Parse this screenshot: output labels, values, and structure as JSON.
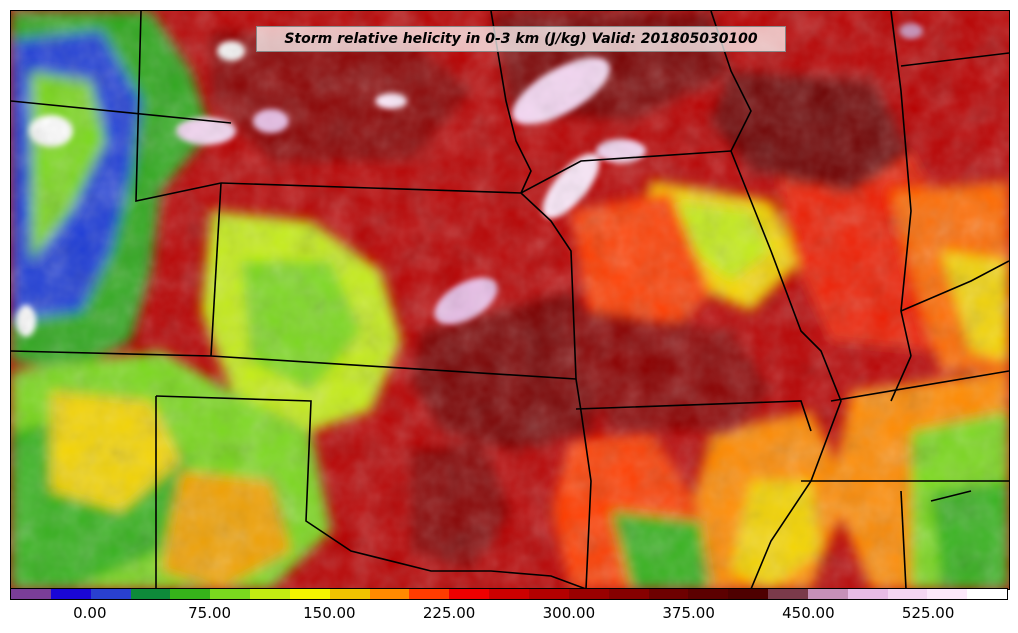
{
  "title": "Storm relative helicity in 0-3 km (J/kg) Valid: 201805030100",
  "colorbar": {
    "colors": [
      "#7a3e98",
      "#1a06d6",
      "#2940d0",
      "#0e8a3a",
      "#36b21a",
      "#7ad81e",
      "#c4ec12",
      "#f4f400",
      "#f0c400",
      "#ff8a00",
      "#ff3c00",
      "#ee0000",
      "#cc0000",
      "#b30000",
      "#9a0000",
      "#860000",
      "#6e0000",
      "#5c0000",
      "#4e0000",
      "#7a3a4a",
      "#c690b8",
      "#e8bce6",
      "#f4d6f2",
      "#fce8fa",
      "#ffffff"
    ],
    "ticks": [
      {
        "label": "0.00",
        "value": 0
      },
      {
        "label": "75.00",
        "value": 75
      },
      {
        "label": "150.00",
        "value": 150
      },
      {
        "label": "225.00",
        "value": 225
      },
      {
        "label": "300.00",
        "value": 300
      },
      {
        "label": "375.00",
        "value": 375
      },
      {
        "label": "450.00",
        "value": 450
      },
      {
        "label": "525.00",
        "value": 525
      }
    ],
    "min": -50,
    "max": 575
  }
}
